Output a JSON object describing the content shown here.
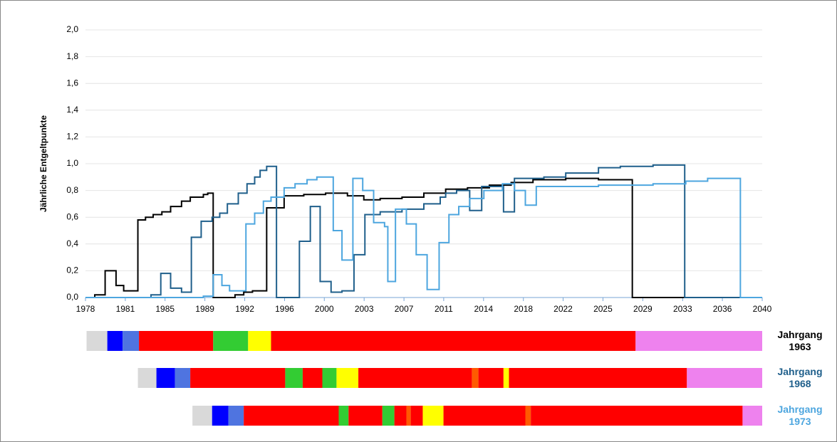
{
  "chart_data": {
    "type": "step",
    "ylabel": "Jährliche Entgeltpunkte",
    "xlim": [
      1978,
      2040
    ],
    "xticks": [
      1978,
      {
        "value": 1981.65,
        "label": "1981"
      },
      {
        "value": 1985.29,
        "label": "1985"
      },
      {
        "value": 1988.94,
        "label": "1989"
      },
      {
        "value": 1992.59,
        "label": "1992"
      },
      {
        "value": 1996.24,
        "label": "1996"
      },
      {
        "value": 1999.88,
        "label": "2000"
      },
      {
        "value": 2003.53,
        "label": "2003"
      },
      {
        "value": 2007.18,
        "label": "2007"
      },
      {
        "value": 2010.82,
        "label": "2011"
      },
      {
        "value": 2014.47,
        "label": "2014"
      },
      {
        "value": 2018.12,
        "label": "2018"
      },
      {
        "value": 2021.76,
        "label": "2022"
      },
      {
        "value": 2025.41,
        "label": "2025"
      },
      {
        "value": 2029.06,
        "label": "2029"
      },
      {
        "value": 2032.71,
        "label": "2033"
      },
      {
        "value": 2036.35,
        "label": "2036"
      },
      2040
    ],
    "ylim": [
      0,
      2
    ],
    "yticks": [
      {
        "value": 0,
        "label": "0,0"
      },
      {
        "value": 0.2,
        "label": "0,2"
      },
      {
        "value": 0.4,
        "label": "0,4"
      },
      {
        "value": 0.6,
        "label": "0,6"
      },
      {
        "value": 0.8,
        "label": "0,8"
      },
      {
        "value": 1,
        "label": "1,0"
      },
      {
        "value": 1.2,
        "label": "1,2"
      },
      {
        "value": 1.4,
        "label": "1,4"
      },
      {
        "value": 1.6,
        "label": "1,6"
      },
      {
        "value": 1.8,
        "label": "1,8"
      },
      {
        "value": 2,
        "label": "2,0"
      }
    ],
    "grid": true,
    "series": [
      {
        "name": "Jahrgang 1963",
        "color": "#000000",
        "x": [
          1978,
          1978.85,
          1979.8,
          1980.8,
          1981.5,
          1982.8,
          1983.5,
          1984.2,
          1985,
          1985.8,
          1986.8,
          1987.6,
          1988.8,
          1989.2,
          1989.7,
          1991.7,
          1992.5,
          1993.3,
          1994.6,
          1996.2,
          1998,
          2000,
          2002,
          2003.5,
          2005,
          2007,
          2009,
          2011,
          2013,
          2015,
          2017,
          2019,
          2022,
          2025,
          2028.1,
          2040
        ],
        "values": [
          0,
          0.02,
          0.2,
          0.09,
          0.05,
          0.58,
          0.6,
          0.62,
          0.64,
          0.68,
          0.72,
          0.75,
          0.77,
          0.78,
          0,
          0.02,
          0.04,
          0.05,
          0.67,
          0.76,
          0.77,
          0.78,
          0.76,
          0.73,
          0.74,
          0.75,
          0.78,
          0.81,
          0.82,
          0.84,
          0.86,
          0.88,
          0.89,
          0.88,
          0,
          0
        ]
      },
      {
        "name": "Jahrgang 1968",
        "color": "#1f5f8b",
        "x": [
          1978,
          1984.0,
          1984.9,
          1985.8,
          1986.8,
          1987.7,
          1988.6,
          1989.6,
          1990.3,
          1991,
          1992,
          1992.8,
          1993.5,
          1994,
          1994.6,
          1995.5,
          1997.6,
          1998.6,
          1999.5,
          2000.5,
          2001.5,
          2002.6,
          2003.6,
          2005,
          2007,
          2009,
          2010.5,
          2011,
          2012,
          2013.2,
          2014.3,
          2016.3,
          2017.3,
          2020,
          2022,
          2025,
          2027,
          2030,
          2032.9,
          2040
        ],
        "values": [
          0,
          0.02,
          0.18,
          0.07,
          0.04,
          0.45,
          0.57,
          0.6,
          0.63,
          0.7,
          0.78,
          0.85,
          0.9,
          0.95,
          0.98,
          0,
          0.42,
          0.68,
          0.12,
          0.04,
          0.05,
          0.32,
          0.62,
          0.64,
          0.66,
          0.7,
          0.75,
          0.78,
          0.8,
          0.65,
          0.83,
          0.64,
          0.89,
          0.9,
          0.93,
          0.97,
          0.98,
          0.99,
          0,
          0
        ]
      },
      {
        "name": "Jahrgang 1973",
        "color": "#4da6df",
        "x": [
          1978,
          1988.8,
          1989.7,
          1990.5,
          1991.2,
          1992.7,
          1993.5,
          1994.3,
          1995,
          1996.2,
          1997.2,
          1998.3,
          1999.2,
          2000.7,
          2001.5,
          2002.5,
          2003.4,
          2004.4,
          2005.4,
          2005.7,
          2006.4,
          2007.4,
          2008.3,
          2009.3,
          2010.4,
          2011.3,
          2012.2,
          2013.2,
          2014.5,
          2016.2,
          2017.3,
          2018.3,
          2019.3,
          2025,
          2030,
          2033,
          2035,
          2038,
          2040
        ],
        "values": [
          0,
          0.01,
          0.17,
          0.09,
          0.05,
          0.55,
          0.63,
          0.72,
          0.75,
          0.82,
          0.85,
          0.88,
          0.9,
          0.5,
          0.28,
          0.89,
          0.8,
          0.56,
          0.53,
          0.12,
          0.66,
          0.55,
          0.32,
          0.06,
          0.41,
          0.62,
          0.68,
          0.74,
          0.8,
          0.85,
          0.8,
          0.69,
          0.83,
          0.84,
          0.85,
          0.87,
          0.89,
          0,
          0
        ]
      }
    ],
    "timelines": [
      {
        "segments": [
          {
            "start": 1978.1,
            "end": 1980.0,
            "color": "#d9d9d9"
          },
          {
            "start": 1980.0,
            "end": 1981.4,
            "color": "#0000ff"
          },
          {
            "start": 1981.4,
            "end": 1982.9,
            "color": "#4f74e0"
          },
          {
            "start": 1982.9,
            "end": 1989.7,
            "color": "#ff0000"
          },
          {
            "start": 1989.7,
            "end": 1992.9,
            "color": "#33cc33"
          },
          {
            "start": 1992.9,
            "end": 1995.0,
            "color": "#ffff00"
          },
          {
            "start": 1995.0,
            "end": 2028.4,
            "color": "#ff0000"
          },
          {
            "start": 2028.4,
            "end": 2040,
            "color": "#ee82ee"
          }
        ]
      },
      {
        "segments": [
          {
            "start": 1982.8,
            "end": 1984.5,
            "color": "#d9d9d9"
          },
          {
            "start": 1984.5,
            "end": 1986.2,
            "color": "#0000ff"
          },
          {
            "start": 1986.2,
            "end": 1987.6,
            "color": "#4f74e0"
          },
          {
            "start": 1987.6,
            "end": 1996.3,
            "color": "#ff0000"
          },
          {
            "start": 1996.3,
            "end": 1997.9,
            "color": "#33cc33"
          },
          {
            "start": 1997.9,
            "end": 1999.7,
            "color": "#ff0000"
          },
          {
            "start": 1999.7,
            "end": 2001.0,
            "color": "#33cc33"
          },
          {
            "start": 2001.0,
            "end": 2003.0,
            "color": "#ffff00"
          },
          {
            "start": 2003.0,
            "end": 2013.4,
            "color": "#ff0000"
          },
          {
            "start": 2013.4,
            "end": 2014.0,
            "color": "#ff5a00"
          },
          {
            "start": 2014.0,
            "end": 2016.3,
            "color": "#ff0000"
          },
          {
            "start": 2016.3,
            "end": 2016.8,
            "color": "#ffff00"
          },
          {
            "start": 2016.8,
            "end": 2033.1,
            "color": "#ff0000"
          },
          {
            "start": 2033.1,
            "end": 2040,
            "color": "#ee82ee"
          }
        ]
      },
      {
        "segments": [
          {
            "start": 1987.8,
            "end": 1989.6,
            "color": "#d9d9d9"
          },
          {
            "start": 1989.6,
            "end": 1991.1,
            "color": "#0000ff"
          },
          {
            "start": 1991.1,
            "end": 1992.5,
            "color": "#4f74e0"
          },
          {
            "start": 1992.5,
            "end": 2001.2,
            "color": "#ff0000"
          },
          {
            "start": 2001.2,
            "end": 2002.1,
            "color": "#33cc33"
          },
          {
            "start": 2002.1,
            "end": 2005.2,
            "color": "#ff0000"
          },
          {
            "start": 2005.2,
            "end": 2006.3,
            "color": "#33cc33"
          },
          {
            "start": 2006.3,
            "end": 2007.4,
            "color": "#ff0000"
          },
          {
            "start": 2007.4,
            "end": 2007.8,
            "color": "#ff5a00"
          },
          {
            "start": 2007.8,
            "end": 2008.9,
            "color": "#ff0000"
          },
          {
            "start": 2008.9,
            "end": 2010.8,
            "color": "#ffff00"
          },
          {
            "start": 2010.8,
            "end": 2018.3,
            "color": "#ff0000"
          },
          {
            "start": 2018.3,
            "end": 2018.8,
            "color": "#ff5a00"
          },
          {
            "start": 2018.8,
            "end": 2038.2,
            "color": "#ff0000"
          },
          {
            "start": 2038.2,
            "end": 2040,
            "color": "#ee82ee"
          }
        ]
      }
    ]
  }
}
